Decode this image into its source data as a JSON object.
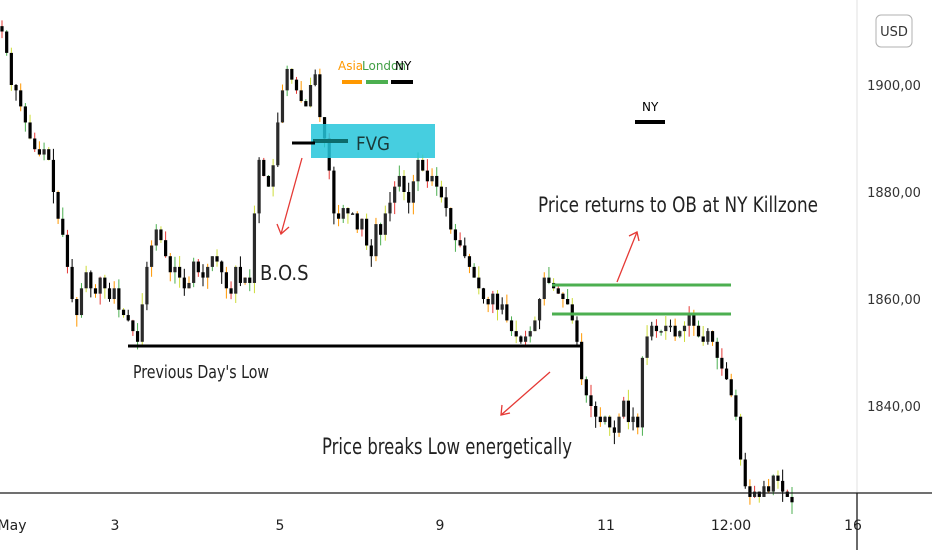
{
  "chart_data": {
    "type": "candlestick",
    "currency": "USD",
    "y_ticks": [
      1900,
      1880,
      1860,
      1840
    ],
    "y_tick_labels": [
      "1900,00",
      "1880,00",
      "1860,00",
      "1840,00"
    ],
    "ylim": [
      1823,
      1914
    ],
    "x_tick_labels": [
      "May",
      "3",
      "5",
      "9",
      "11",
      "12:00",
      "16"
    ],
    "session_labels": [
      "Asia",
      "London",
      "NY"
    ],
    "ny_label": "NY",
    "annotations": {
      "fvg": "FVG",
      "bos": "B.O.S",
      "prev_low": "Previous Day's Low",
      "returns": "Price returns to OB at NY Killzone",
      "breaks": "Price breaks Low energetically"
    },
    "levels": {
      "previous_day_low": 1851,
      "ob_top": 1862,
      "ob_bottom": 1856,
      "fvg_top": 1892,
      "fvg_bottom": 1886
    },
    "close_series": [
      1910,
      1906,
      1900,
      1899,
      1896,
      1893,
      1890,
      1888,
      1887,
      1888,
      1886,
      1880,
      1875,
      1872,
      1866,
      1860,
      1857,
      1862,
      1865,
      1862,
      1861,
      1864,
      1862,
      1860,
      1862,
      1858,
      1857,
      1856,
      1854,
      1852,
      1859,
      1866,
      1870,
      1873,
      1871,
      1868,
      1865,
      1866,
      1864,
      1862,
      1863,
      1867,
      1865,
      1864,
      1866,
      1868,
      1867,
      1865,
      1862,
      1861,
      1866,
      1863,
      1864,
      1863,
      1876,
      1886,
      1883,
      1881,
      1885,
      1893,
      1899,
      1903,
      1901,
      1899,
      1897,
      1896,
      1900,
      1902,
      1894,
      1890,
      1884,
      1876,
      1875,
      1877,
      1876,
      1876,
      1873,
      1875,
      1870,
      1868,
      1874,
      1872,
      1876,
      1878,
      1881,
      1883,
      1880,
      1878,
      1882,
      1886,
      1884,
      1882,
      1883,
      1881,
      1879,
      1877,
      1873,
      1871,
      1870,
      1868,
      1866,
      1864,
      1862,
      1860,
      1859,
      1861,
      1858,
      1859,
      1856,
      1854,
      1853,
      1852,
      1853,
      1854,
      1856,
      1860,
      1864,
      1863,
      1862,
      1861,
      1860,
      1859,
      1856,
      1852,
      1845,
      1842,
      1840,
      1838,
      1837,
      1838,
      1836,
      1835,
      1838,
      1841,
      1837,
      1838,
      1836,
      1849,
      1853,
      1855,
      1854,
      1854,
      1855,
      1855,
      1853,
      1854,
      1855,
      1857,
      1855,
      1853,
      1852,
      1854,
      1852,
      1849,
      1847,
      1845,
      1842,
      1838,
      1830,
      1825,
      1823,
      1824,
      1823,
      1825,
      1824,
      1827,
      1826,
      1824,
      1823,
      1822
    ]
  }
}
